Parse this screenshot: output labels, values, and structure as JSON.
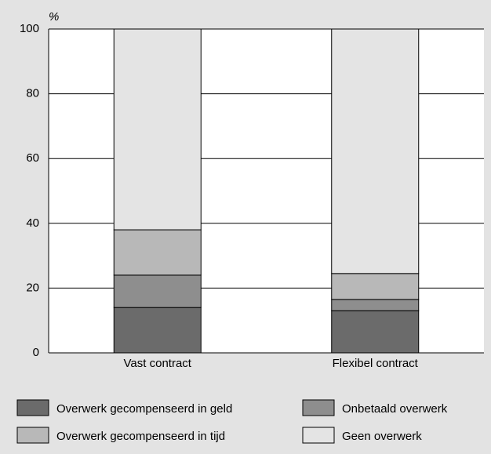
{
  "chart_data": {
    "type": "stacked_bar",
    "y_label": "%",
    "categories": [
      "Vast contract",
      "Flexibel contract"
    ],
    "series": [
      {
        "name": "Overwerk gecompenseerd in geld",
        "color": "#6b6b6b",
        "values": [
          14,
          13
        ]
      },
      {
        "name": "Onbetaald overwerk",
        "color": "#8e8e8e",
        "values": [
          10,
          3.5
        ]
      },
      {
        "name": "Overwerk gecompenseerd in tijd",
        "color": "#b8b8b8",
        "values": [
          14,
          8
        ]
      },
      {
        "name": "Geen overwerk",
        "color": "#e4e4e4",
        "values": [
          62,
          75.5
        ]
      }
    ],
    "ylim": [
      0,
      100
    ],
    "yticks": [
      0,
      20,
      40,
      60,
      80,
      100
    ],
    "grid": true
  }
}
